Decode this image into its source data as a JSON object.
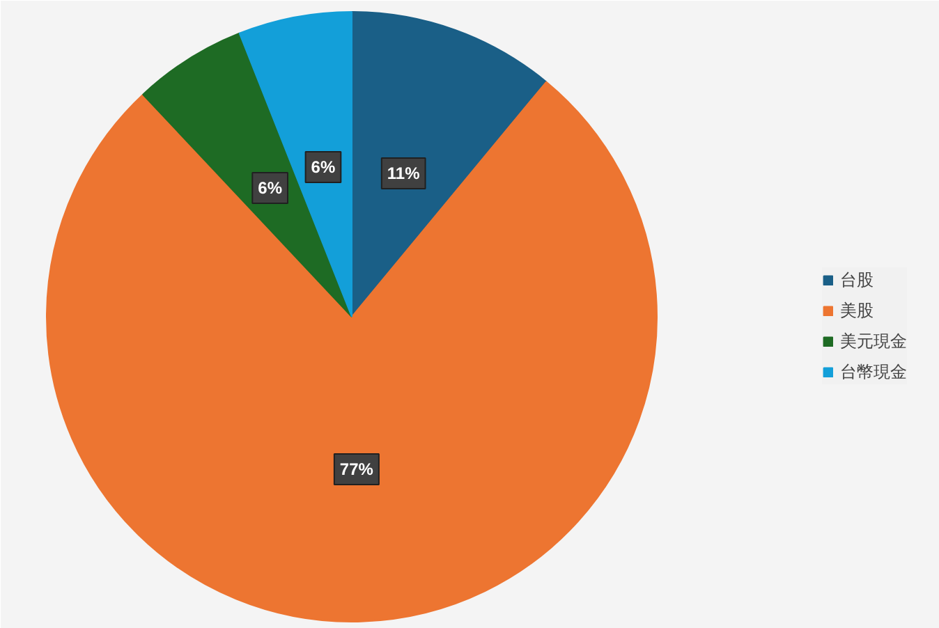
{
  "chart_data": {
    "type": "pie",
    "categories": [
      "台股",
      "美股",
      "美元現金",
      "台幣現金"
    ],
    "values": [
      11,
      77,
      6,
      6
    ],
    "colors": [
      "#1a5f87",
      "#ed7531",
      "#1e6b24",
      "#139fd9"
    ],
    "value_labels": [
      "11%",
      "77%",
      "6%",
      "6%"
    ],
    "legend": "right"
  }
}
